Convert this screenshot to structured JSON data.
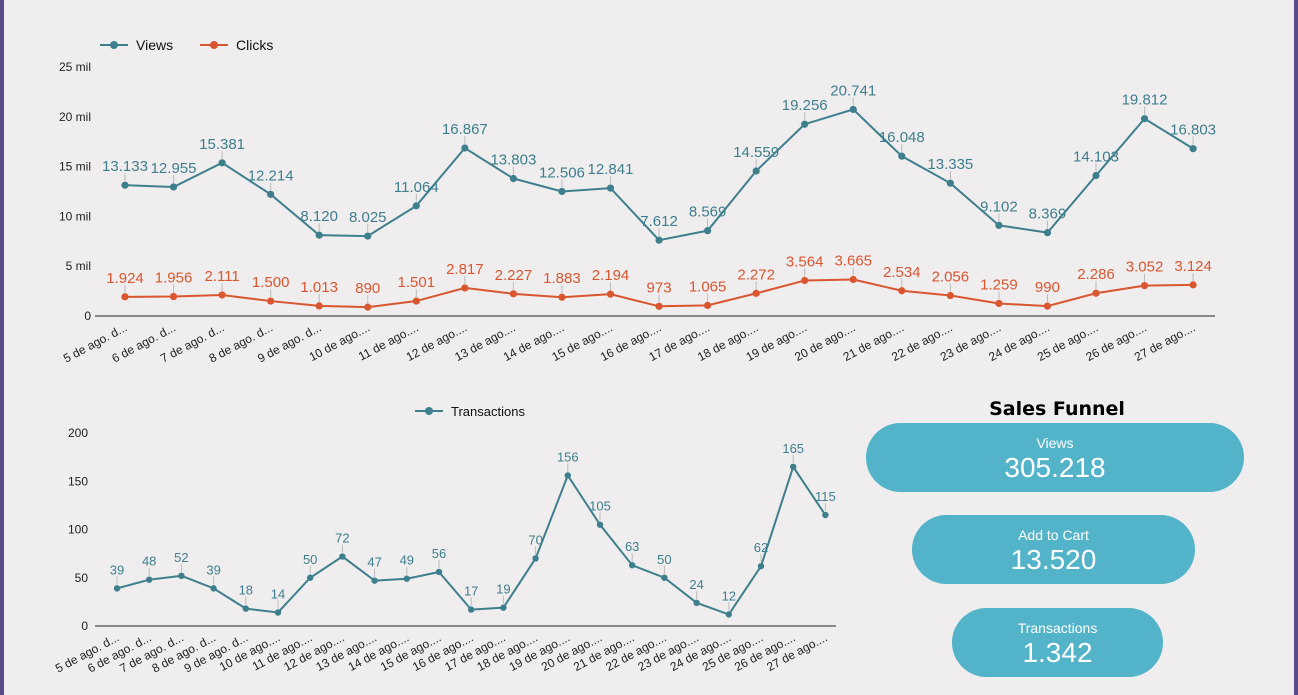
{
  "chart_data": [
    {
      "type": "line",
      "categories": [
        "5 de ago. d...",
        "6 de ago. d...",
        "7 de ago. d...",
        "8 de ago. d...",
        "9 de ago. d...",
        "10 de ago....",
        "11 de ago....",
        "12 de ago....",
        "13 de ago....",
        "14 de ago....",
        "15 de ago....",
        "16 de ago....",
        "17 de ago....",
        "18 de ago....",
        "19 de ago....",
        "20 de ago....",
        "21 de ago....",
        "22 de ago....",
        "23 de ago....",
        "24 de ago....",
        "25 de ago....",
        "26 de ago....",
        "27 de ago...."
      ],
      "series": [
        {
          "name": "Views",
          "color": "#3e7f8d",
          "values": [
            13133,
            12955,
            15381,
            12214,
            8120,
            8025,
            11064,
            16867,
            13803,
            12506,
            12841,
            7612,
            8569,
            14559,
            19256,
            20741,
            16048,
            13335,
            9102,
            8369,
            14103,
            19812,
            16803
          ],
          "labels": [
            "13.133",
            "12.955",
            "15.381",
            "12.214",
            "8.120",
            "8.025",
            "11.064",
            "16.867",
            "13.803",
            "12.506",
            "12.841",
            "7.612",
            "8.569",
            "14.559",
            "19.256",
            "20.741",
            "16.048",
            "13.335",
            "9.102",
            "8.369",
            "14.103",
            "19.812",
            "16.803"
          ]
        },
        {
          "name": "Clicks",
          "color": "#d9562f",
          "values": [
            1924,
            1956,
            2111,
            1500,
            1013,
            890,
            1501,
            2817,
            2227,
            1883,
            2194,
            973,
            1065,
            2272,
            3564,
            3665,
            2534,
            2056,
            1259,
            990,
            2286,
            3052,
            3124
          ],
          "labels": [
            "1.924",
            "1.956",
            "2.111",
            "1.500",
            "1.013",
            "890",
            "1.501",
            "2.817",
            "2.227",
            "1.883",
            "2.194",
            "973",
            "1.065",
            "2.272",
            "3.564",
            "3.665",
            "2.534",
            "2.056",
            "1.259",
            "990",
            "2.286",
            "3.052",
            "3.124"
          ]
        }
      ],
      "ylim": [
        0,
        25000
      ],
      "yticks": [
        0,
        5000,
        10000,
        15000,
        20000,
        25000
      ],
      "ytick_labels": [
        "0",
        "5 mil",
        "10 mil",
        "15 mil",
        "20 mil",
        "25 mil"
      ],
      "legend": "top-left"
    },
    {
      "type": "line",
      "categories": [
        "5 de ago. d...",
        "6 de ago. d...",
        "7 de ago. d...",
        "8 de ago. d...",
        "9 de ago. d...",
        "10 de ago....",
        "11 de ago....",
        "12 de ago....",
        "13 de ago....",
        "14 de ago....",
        "15 de ago....",
        "16 de ago....",
        "17 de ago....",
        "18 de ago....",
        "19 de ago....",
        "20 de ago....",
        "21 de ago....",
        "22 de ago....",
        "23 de ago....",
        "24 de ago....",
        "25 de ago....",
        "26 de ago....",
        "27 de ago...."
      ],
      "series": [
        {
          "name": "Transactions",
          "color": "#3e7f8d",
          "values": [
            39,
            48,
            52,
            39,
            18,
            14,
            50,
            72,
            47,
            49,
            56,
            17,
            19,
            70,
            156,
            105,
            63,
            50,
            24,
            12,
            62,
            165,
            115
          ],
          "labels": [
            "39",
            "48",
            "52",
            "39",
            "18",
            "14",
            "50",
            "72",
            "47",
            "49",
            "56",
            "17",
            "19",
            "70",
            "156",
            "105",
            "63",
            "50",
            "24",
            "12",
            "62",
            "165",
            "115"
          ]
        }
      ],
      "ylim": [
        0,
        200
      ],
      "yticks": [
        0,
        50,
        100,
        150,
        200
      ],
      "ytick_labels": [
        "0",
        "50",
        "100",
        "150",
        "200"
      ],
      "legend": "top-center"
    }
  ],
  "funnel": {
    "title": "Sales Funnel",
    "items": [
      {
        "label": "Views",
        "value": "305.218"
      },
      {
        "label": "Add to Cart",
        "value": "13.520"
      },
      {
        "label": "Transactions",
        "value": "1.342"
      }
    ]
  },
  "colors": {
    "frame": "#5a4a86",
    "pill": "#52b3c9",
    "views": "#3e7f8d",
    "clicks": "#d9562f"
  }
}
